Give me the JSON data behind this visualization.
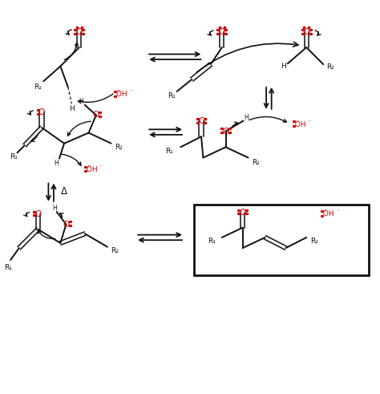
{
  "bg_color": "#ffffff",
  "red_color": "#cc0000",
  "black_color": "#111111",
  "fig_width": 4.74,
  "fig_height": 4.91,
  "dpi": 100,
  "xlim": [
    0,
    10
  ],
  "ylim": [
    0,
    10.35
  ]
}
